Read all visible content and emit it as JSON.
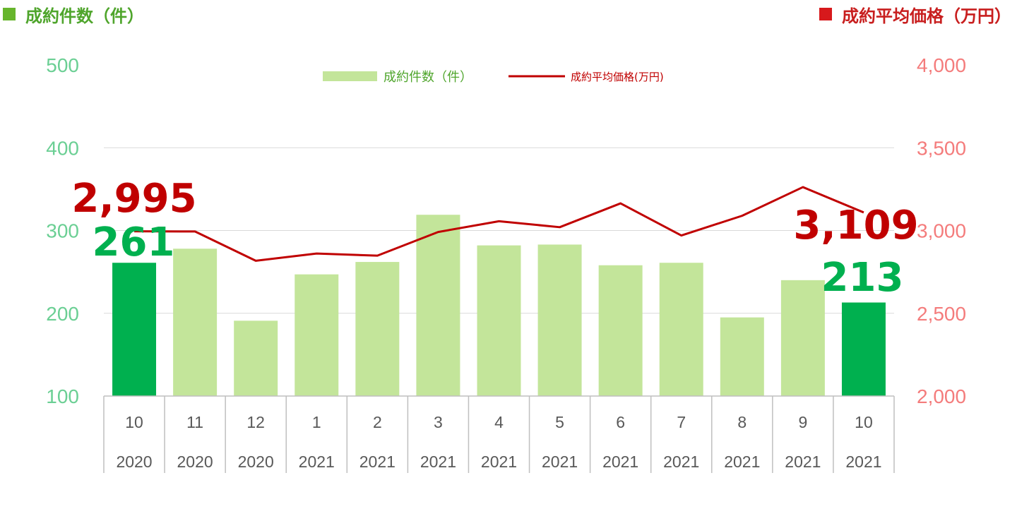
{
  "header": {
    "left_title": "成約件数（件）",
    "right_title": "成約平均価格（万円）",
    "left_color": "#67b52c",
    "right_color": "#d7191c"
  },
  "legend": {
    "bar_label": "成約件数（件）",
    "line_label": "成約平均価格(万円)",
    "position": "top-center"
  },
  "chart_data": {
    "type": "bar",
    "categories": [
      "10",
      "11",
      "12",
      "1",
      "2",
      "3",
      "4",
      "5",
      "6",
      "7",
      "8",
      "9",
      "10"
    ],
    "category_years": [
      "2020",
      "2020",
      "2020",
      "2021",
      "2021",
      "2021",
      "2021",
      "2021",
      "2021",
      "2021",
      "2021",
      "2021",
      "2021"
    ],
    "series": [
      {
        "name": "成約件数（件）",
        "type": "bar",
        "axis": "left",
        "values": [
          261,
          278,
          191,
          247,
          262,
          319,
          282,
          283,
          258,
          261,
          195,
          240,
          213
        ],
        "color": "#c3e59a",
        "highlight_color": "#00b04f",
        "highlight_indices": [
          0,
          12
        ]
      },
      {
        "name": "成約平均価格(万円)",
        "type": "line",
        "axis": "right",
        "values": [
          2995,
          2994,
          2817,
          2861,
          2848,
          2991,
          3056,
          3020,
          3164,
          2970,
          3089,
          3262,
          3109
        ],
        "color": "#c00000"
      }
    ],
    "y_left": {
      "min": 100,
      "max": 500,
      "ticks": [
        100,
        200,
        300,
        400,
        500
      ],
      "tick_labels": [
        "100",
        "200",
        "300",
        "400",
        "500"
      ],
      "color": "#6bcf94"
    },
    "y_right": {
      "min": 2000,
      "max": 4000,
      "ticks": [
        2000,
        2500,
        3000,
        3500,
        4000
      ],
      "tick_labels": [
        "2,000",
        "2,500",
        "3,000",
        "3,500",
        "4,000"
      ],
      "color": "#f47c7c"
    },
    "annotations": [
      {
        "text": "2,995",
        "series": "line",
        "index": 0,
        "color": "#c00000"
      },
      {
        "text": "261",
        "series": "bar",
        "index": 0,
        "color": "#00b04f"
      },
      {
        "text": "3,109",
        "series": "line",
        "index": 12,
        "color": "#c00000"
      },
      {
        "text": "213",
        "series": "bar",
        "index": 12,
        "color": "#00b04f"
      }
    ],
    "grid": true
  }
}
